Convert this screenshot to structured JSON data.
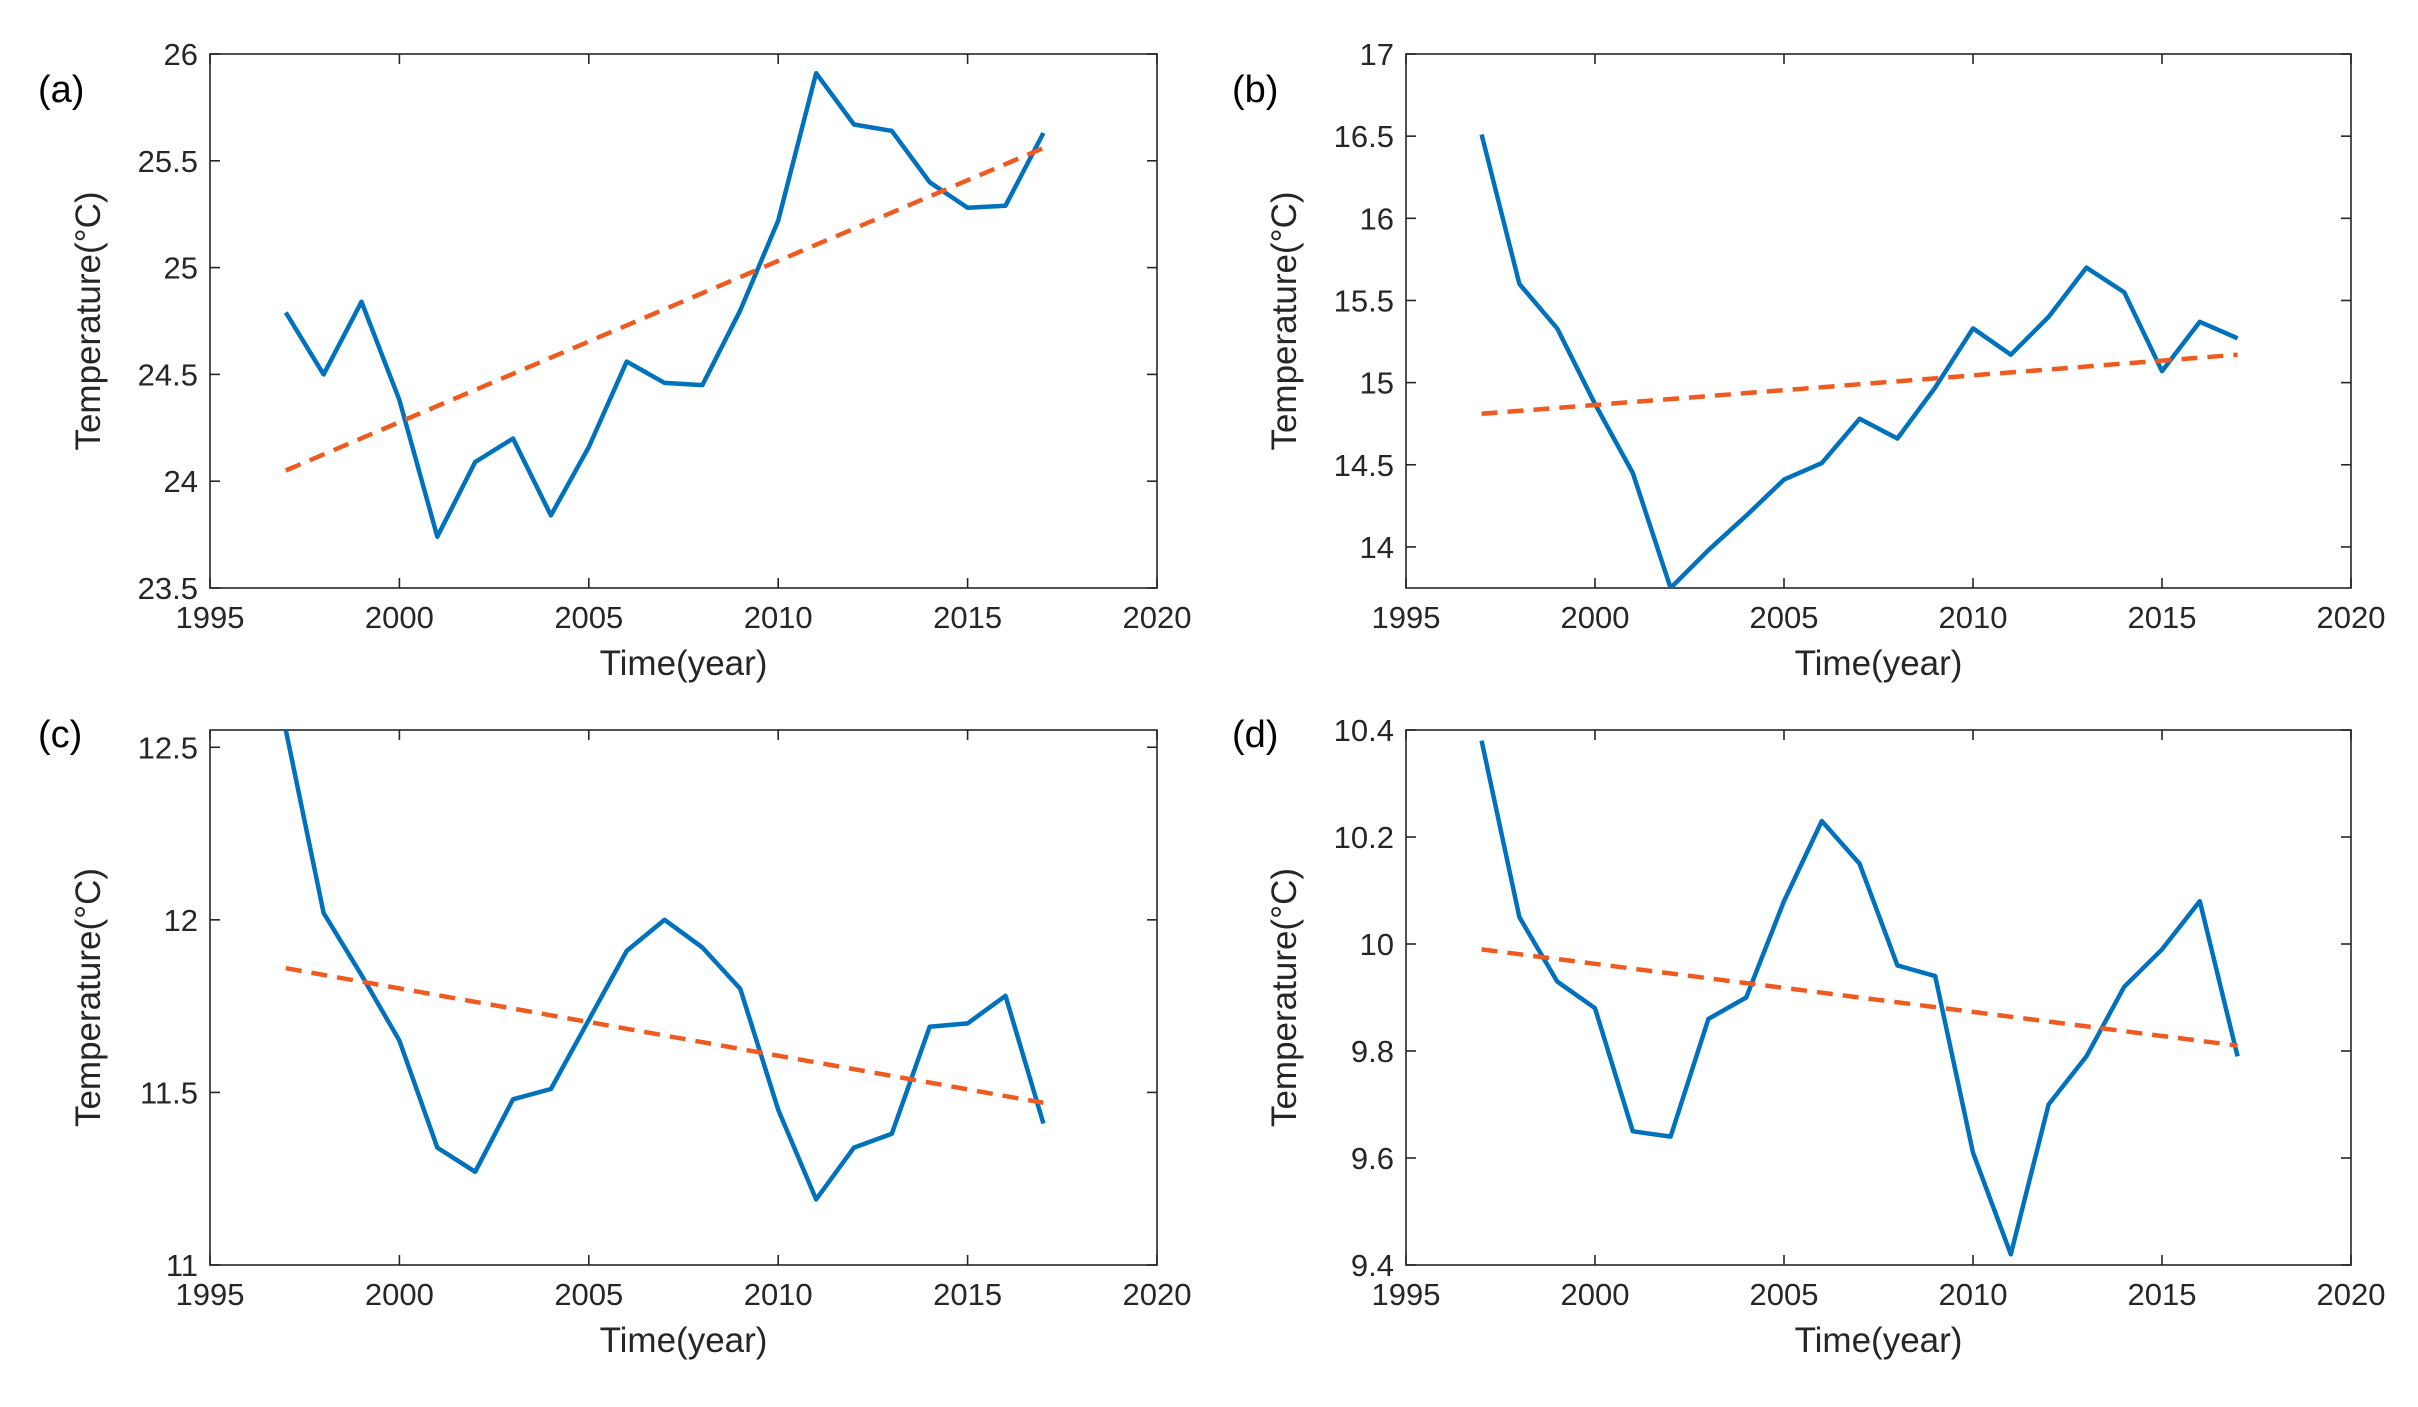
{
  "colors": {
    "series": "#0072BD",
    "trend": "#F05A1E",
    "axis": "#262626"
  },
  "chart_data": [
    {
      "type": "line",
      "panel_label": "(a)",
      "xlabel": "Time(year)",
      "ylabel": "Temperature(°C)",
      "xlim": [
        1995,
        2020
      ],
      "ylim": [
        23.5,
        26
      ],
      "xticks": [
        1995,
        2000,
        2005,
        2010,
        2015,
        2020
      ],
      "yticks": [
        23.5,
        24,
        24.5,
        25,
        25.5,
        26
      ],
      "ytick_labels": [
        "23.5",
        "24",
        "24.5",
        "25",
        "25.5",
        "26"
      ],
      "grid": false,
      "x": [
        1997,
        1998,
        1999,
        2000,
        2001,
        2002,
        2003,
        2004,
        2005,
        2006,
        2007,
        2008,
        2009,
        2010,
        2011,
        2012,
        2013,
        2014,
        2015,
        2016,
        2017
      ],
      "series": [
        {
          "name": "Temperature",
          "style": "solid",
          "values": [
            24.79,
            24.5,
            24.84,
            24.38,
            23.74,
            24.09,
            24.2,
            23.84,
            24.16,
            24.56,
            24.46,
            24.45,
            24.8,
            25.22,
            25.91,
            25.67,
            25.64,
            25.4,
            25.28,
            25.29,
            25.63
          ]
        },
        {
          "name": "Linear trend",
          "style": "dashed",
          "x": [
            1997,
            2017
          ],
          "values": [
            24.05,
            25.56
          ]
        }
      ]
    },
    {
      "type": "line",
      "panel_label": "(b)",
      "xlabel": "Time(year)",
      "ylabel": "Temperature(°C)",
      "xlim": [
        1995,
        2020
      ],
      "ylim": [
        13.75,
        17
      ],
      "xticks": [
        1995,
        2000,
        2005,
        2010,
        2015,
        2020
      ],
      "yticks": [
        14,
        14.5,
        15,
        15.5,
        16,
        16.5,
        17
      ],
      "ytick_labels": [
        "14",
        "14.5",
        "15",
        "15.5",
        "16",
        "16.5",
        "17"
      ],
      "grid": false,
      "x": [
        1997,
        1998,
        1999,
        2000,
        2001,
        2002,
        2003,
        2004,
        2005,
        2006,
        2007,
        2008,
        2009,
        2010,
        2011,
        2012,
        2013,
        2014,
        2015,
        2016,
        2017
      ],
      "series": [
        {
          "name": "Temperature",
          "style": "solid",
          "values": [
            16.51,
            15.6,
            15.33,
            14.87,
            14.45,
            13.75,
            13.98,
            14.19,
            14.41,
            14.51,
            14.78,
            14.66,
            14.97,
            15.33,
            15.17,
            15.4,
            15.7,
            15.55,
            15.07,
            15.37,
            15.27
          ]
        },
        {
          "name": "Linear trend",
          "style": "dashed",
          "x": [
            1997,
            2017
          ],
          "values": [
            14.81,
            15.17
          ]
        }
      ]
    },
    {
      "type": "line",
      "panel_label": "(c)",
      "xlabel": "Time(year)",
      "ylabel": "Temperature(°C)",
      "xlim": [
        1995,
        2020
      ],
      "ylim": [
        11,
        12.55
      ],
      "xticks": [
        1995,
        2000,
        2005,
        2010,
        2015,
        2020
      ],
      "yticks": [
        11,
        11.5,
        12,
        12.5
      ],
      "ytick_labels": [
        "11",
        "11.5",
        "12",
        "12.5"
      ],
      "grid": false,
      "x": [
        1997,
        1998,
        1999,
        2000,
        2001,
        2002,
        2003,
        2004,
        2005,
        2006,
        2007,
        2008,
        2009,
        2010,
        2011,
        2012,
        2013,
        2014,
        2015,
        2016,
        2017
      ],
      "series": [
        {
          "name": "Temperature",
          "style": "solid",
          "values": [
            12.55,
            12.02,
            11.84,
            11.65,
            11.34,
            11.27,
            11.48,
            11.51,
            11.71,
            11.91,
            12.0,
            11.92,
            11.8,
            11.45,
            11.19,
            11.34,
            11.38,
            11.69,
            11.7,
            11.78,
            11.41
          ]
        },
        {
          "name": "Linear trend",
          "style": "dashed",
          "x": [
            1997,
            2017
          ],
          "values": [
            11.86,
            11.47
          ]
        }
      ]
    },
    {
      "type": "line",
      "panel_label": "(d)",
      "xlabel": "Time(year)",
      "ylabel": "Temperature(°C)",
      "xlim": [
        1995,
        2020
      ],
      "ylim": [
        9.4,
        10.4
      ],
      "xticks": [
        1995,
        2000,
        2005,
        2010,
        2015,
        2020
      ],
      "yticks": [
        9.4,
        9.6,
        9.8,
        10,
        10.2,
        10.4
      ],
      "ytick_labels": [
        "9.4",
        "9.6",
        "9.8",
        "10",
        "10.2",
        "10.4"
      ],
      "grid": false,
      "x": [
        1997,
        1998,
        1999,
        2000,
        2001,
        2002,
        2003,
        2004,
        2005,
        2006,
        2007,
        2008,
        2009,
        2010,
        2011,
        2012,
        2013,
        2014,
        2015,
        2016,
        2017
      ],
      "series": [
        {
          "name": "Temperature",
          "style": "solid",
          "values": [
            10.38,
            10.05,
            9.93,
            9.88,
            9.65,
            9.64,
            9.86,
            9.9,
            10.08,
            10.23,
            10.15,
            9.96,
            9.94,
            9.61,
            9.42,
            9.7,
            9.79,
            9.92,
            9.99,
            10.08,
            9.79
          ]
        },
        {
          "name": "Linear trend",
          "style": "dashed",
          "x": [
            1997,
            2017
          ],
          "values": [
            9.99,
            9.81
          ]
        }
      ]
    }
  ]
}
